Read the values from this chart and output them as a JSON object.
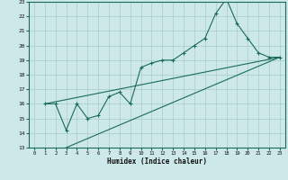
{
  "xlabel": "Humidex (Indice chaleur)",
  "xlim": [
    -0.5,
    23.5
  ],
  "ylim": [
    13,
    23
  ],
  "xticks": [
    0,
    1,
    2,
    3,
    4,
    5,
    6,
    7,
    8,
    9,
    10,
    11,
    12,
    13,
    14,
    15,
    16,
    17,
    18,
    19,
    20,
    21,
    22,
    23
  ],
  "yticks": [
    13,
    14,
    15,
    16,
    17,
    18,
    19,
    20,
    21,
    22,
    23
  ],
  "bg_color": "#cce8e8",
  "grid_color": "#aacccc",
  "line_color": "#1a6b5a",
  "line1_x": [
    1,
    2,
    3,
    4,
    5,
    6,
    7,
    8,
    9,
    10,
    11,
    12,
    13,
    14,
    15,
    16,
    17,
    18,
    19,
    20,
    21,
    22,
    23
  ],
  "line1_y": [
    16,
    16,
    14.2,
    16,
    15.0,
    15.2,
    16.5,
    16.8,
    16.0,
    18.5,
    18.8,
    19.0,
    19.0,
    19.5,
    20.0,
    20.5,
    22.2,
    23.2,
    21.5,
    20.5,
    19.5,
    19.2,
    19.2
  ],
  "line2_x": [
    1,
    23
  ],
  "line2_y": [
    16,
    19.2
  ],
  "line3_x": [
    3,
    23
  ],
  "line3_y": [
    13,
    19.2
  ]
}
